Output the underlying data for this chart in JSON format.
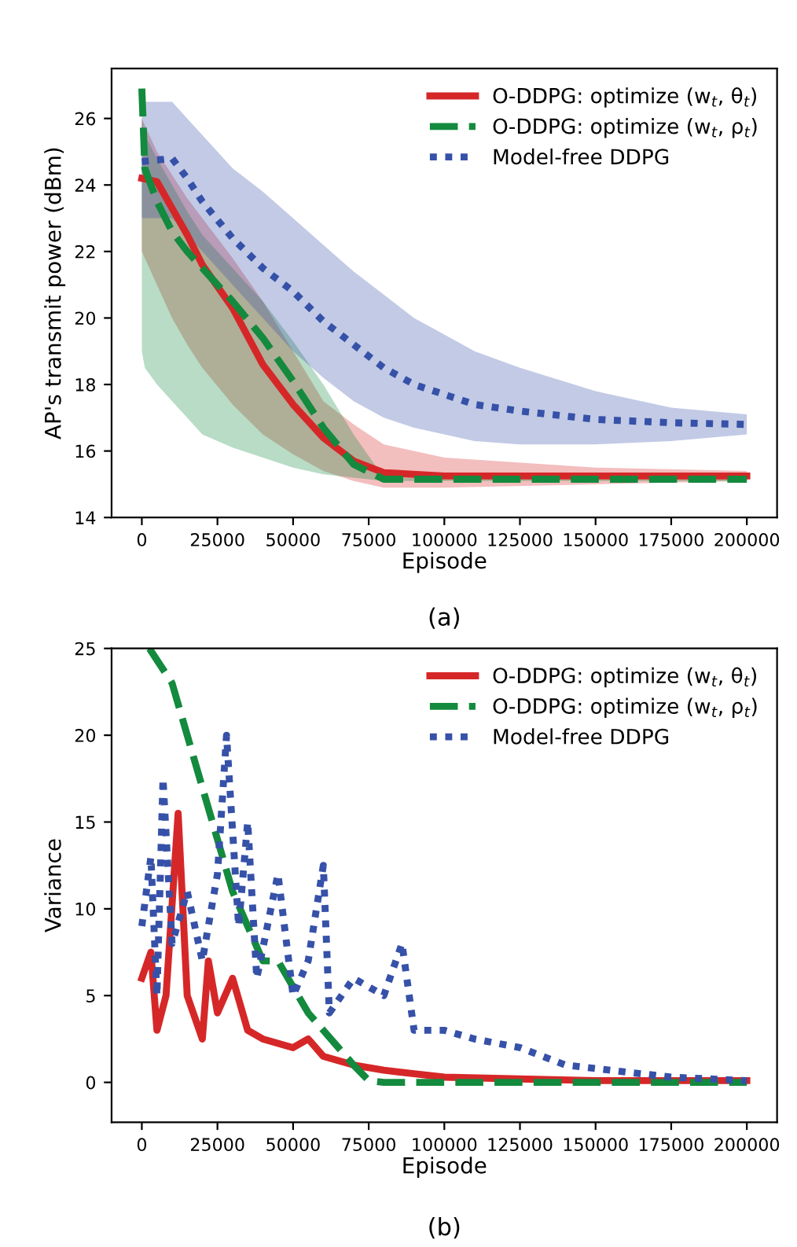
{
  "chart_data": [
    {
      "type": "line",
      "xlabel": "Episode",
      "ylabel": "AP's transmit power (dBm)",
      "annotations": [
        "(a)"
      ],
      "xlim": [
        -10000,
        210000
      ],
      "xticks": [
        0,
        25000,
        50000,
        75000,
        100000,
        125000,
        150000,
        175000,
        200000
      ],
      "ylim": [
        14,
        27.5
      ],
      "yticks": [
        14,
        16,
        18,
        20,
        22,
        24,
        26
      ],
      "legend": "top right",
      "grid": false,
      "marker": "none",
      "series": [
        {
          "name": "O-DDPG: optimize (w$_{t}$, θ$_{t}$)",
          "color": "#d62728",
          "line_style": "solid",
          "x": [
            0,
            5000,
            10000,
            15000,
            20000,
            30000,
            40000,
            50000,
            60000,
            70000,
            80000,
            100000,
            150000,
            200000
          ],
          "values": [
            24.2,
            24.1,
            23.3,
            22.5,
            21.6,
            20.3,
            18.6,
            17.4,
            16.4,
            15.7,
            15.35,
            15.25,
            15.25,
            15.25
          ],
          "lower": [
            22,
            21,
            20,
            19.2,
            18.5,
            17.4,
            16.5,
            15.9,
            15.4,
            15.1,
            14.9,
            14.9,
            15,
            15.1
          ],
          "upper": [
            26,
            25,
            24.3,
            23.6,
            23,
            21.8,
            20.5,
            19,
            17.5,
            16.8,
            16.2,
            15.8,
            15.5,
            15.4
          ]
        },
        {
          "name": "O-DDPG: optimize (w$_{t}$, ρ$_{t}$)",
          "color": "#138a3e",
          "line_style": "dashed",
          "x": [
            0,
            1000,
            5000,
            10000,
            15000,
            20000,
            30000,
            40000,
            50000,
            60000,
            70000,
            80000,
            100000,
            150000,
            200000
          ],
          "values": [
            26.9,
            24.5,
            23.5,
            22.6,
            22,
            21.5,
            20.5,
            19.4,
            18.1,
            16.7,
            15.6,
            15.15,
            15.15,
            15.15,
            15.15
          ],
          "lower": [
            19,
            18.5,
            18,
            17.5,
            17,
            16.5,
            16.1,
            15.8,
            15.5,
            15.3,
            15.2,
            15.1,
            15.1,
            15.1,
            15.1
          ],
          "upper": [
            26,
            25.5,
            24.8,
            24,
            23.2,
            22.5,
            21.5,
            20.5,
            19.3,
            18,
            16.5,
            15.2,
            15.2,
            15.2,
            15.2
          ]
        },
        {
          "name": "Model-free DDPG",
          "color": "#3651a8",
          "line_style": "dotted",
          "x": [
            0,
            10000,
            15000,
            20000,
            30000,
            40000,
            50000,
            60000,
            70000,
            80000,
            90000,
            100000,
            110000,
            125000,
            150000,
            175000,
            200000
          ],
          "values": [
            24.7,
            24.8,
            24.2,
            23.5,
            22.4,
            21.5,
            20.8,
            19.9,
            19.2,
            18.5,
            18,
            17.7,
            17.4,
            17.2,
            16.95,
            16.85,
            16.8
          ],
          "lower": [
            23,
            23,
            22.5,
            22,
            21,
            20,
            19,
            18.2,
            17.5,
            17,
            16.7,
            16.5,
            16.3,
            16.2,
            16.2,
            16.3,
            16.5
          ],
          "upper": [
            26.5,
            26.5,
            26,
            25.5,
            24.5,
            23.8,
            23,
            22.2,
            21.4,
            20.7,
            20,
            19.5,
            19,
            18.5,
            17.8,
            17.3,
            17.1
          ]
        }
      ]
    },
    {
      "type": "line",
      "xlabel": "Episode",
      "ylabel": "Variance",
      "annotations": [
        "(b)"
      ],
      "xlim": [
        -10000,
        210000
      ],
      "xticks": [
        0,
        25000,
        50000,
        75000,
        100000,
        125000,
        150000,
        175000,
        200000
      ],
      "ylim": [
        -2.3,
        25
      ],
      "yticks": [
        0,
        5,
        10,
        15,
        20,
        25
      ],
      "legend": "top right",
      "grid": false,
      "marker": "none",
      "series": [
        {
          "name": "O-DDPG: optimize (w$_{t}$, θ$_{t}$)",
          "color": "#d62728",
          "line_style": "solid",
          "x": [
            0,
            3000,
            5000,
            8000,
            12000,
            15000,
            20000,
            22000,
            25000,
            30000,
            35000,
            40000,
            50000,
            55000,
            60000,
            70000,
            80000,
            90000,
            100000,
            125000,
            150000,
            200000
          ],
          "values": [
            6,
            7.5,
            3,
            5,
            15.5,
            5,
            2.5,
            7,
            4,
            6,
            3,
            2.5,
            2,
            2.5,
            1.5,
            1,
            0.7,
            0.5,
            0.3,
            0.2,
            0.1,
            0.1
          ]
        },
        {
          "name": "O-DDPG: optimize (w$_{t}$, ρ$_{t}$)",
          "color": "#138a3e",
          "line_style": "dashed",
          "x": [
            2500,
            10000,
            15000,
            20000,
            25000,
            30000,
            35000,
            40000,
            45000,
            50000,
            55000,
            60000,
            65000,
            70000,
            75000,
            80000,
            200000
          ],
          "values": [
            25,
            23,
            20,
            17,
            14,
            11,
            9,
            7,
            7,
            5.5,
            4,
            3,
            2,
            1,
            0.1,
            0,
            0
          ]
        },
        {
          "name": "Model-free DDPG",
          "color": "#3651a8",
          "line_style": "dotted",
          "x": [
            0,
            3000,
            5000,
            7000,
            10000,
            15000,
            20000,
            25000,
            28000,
            32000,
            35000,
            38000,
            45000,
            50000,
            55000,
            60000,
            62000,
            70000,
            80000,
            86000,
            90000,
            100000,
            110000,
            125000,
            140000,
            150000,
            175000,
            200000
          ],
          "values": [
            9,
            13,
            5,
            17.5,
            8,
            11,
            7,
            12,
            20,
            9,
            15,
            6,
            12,
            5,
            7,
            12.5,
            4,
            6,
            5,
            8,
            3,
            3,
            2.5,
            2,
            1,
            0.8,
            0.3,
            0.1
          ]
        }
      ]
    }
  ]
}
